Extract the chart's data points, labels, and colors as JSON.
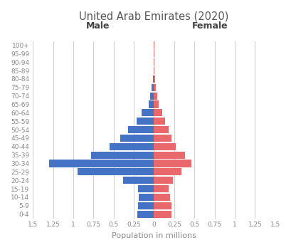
{
  "title": "United Arab Emirates (2020)",
  "age_groups": [
    "0-4",
    "5-9",
    "10-14",
    "15-19",
    "20-24",
    "25-29",
    "30-34",
    "35-39",
    "40-44",
    "45-49",
    "50-54",
    "55-59",
    "60-64",
    "65-69",
    "70-74",
    "75-79",
    "80-84",
    "85-89",
    "90-94",
    "95-99",
    "100+"
  ],
  "male": [
    0.21,
    0.2,
    0.19,
    0.2,
    0.38,
    0.95,
    1.3,
    0.78,
    0.55,
    0.42,
    0.32,
    0.22,
    0.15,
    0.07,
    0.05,
    0.03,
    0.012,
    0.006,
    0.003,
    0.001,
    0.0005
  ],
  "female": [
    0.22,
    0.22,
    0.2,
    0.18,
    0.23,
    0.34,
    0.46,
    0.38,
    0.27,
    0.22,
    0.18,
    0.14,
    0.1,
    0.055,
    0.04,
    0.025,
    0.012,
    0.006,
    0.003,
    0.001,
    0.0005
  ],
  "male_color": "#4472C4",
  "female_color": "#E8686B",
  "xlim": 1.5,
  "xlabel": "Population in millions",
  "male_label": "Male",
  "female_label": "Female",
  "background_color": "#ffffff",
  "grid_color": "#d0d0d0",
  "tick_color": "#888888",
  "title_color": "#555555",
  "xticks": [
    -1.5,
    -1.25,
    -1.0,
    -0.75,
    -0.5,
    -0.25,
    0,
    0.25,
    0.5,
    0.75,
    1.0,
    1.25,
    1.5
  ],
  "xtick_labels": [
    "1,5",
    "1,25",
    "1",
    "0,75",
    "0,5",
    "0,25",
    "0",
    "0,25",
    "0,5",
    "0,75",
    "1",
    "1,25",
    "1,5"
  ]
}
